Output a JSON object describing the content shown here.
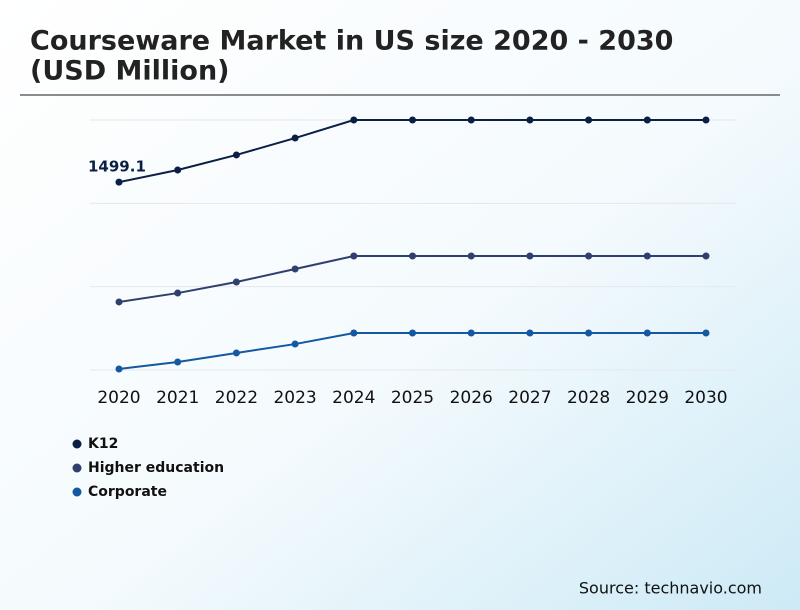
{
  "chart_data": {
    "type": "line",
    "title": "Courseware Market in US size 2020 - 2030",
    "subtitle": "(USD Million)",
    "categories": [
      "2020",
      "2021",
      "2022",
      "2023",
      "2024",
      "2025",
      "2026",
      "2027",
      "2028",
      "2029",
      "2030"
    ],
    "series": [
      {
        "name": "K12",
        "color": "#0b1f45",
        "values": [
          1499.1,
          1596,
          1716,
          1851,
          1995,
          1995,
          1995,
          1995,
          1995,
          1995,
          1995
        ]
      },
      {
        "name": "Higher education",
        "color": "#2f3f6e",
        "values": [
          543,
          614,
          702,
          806,
          910,
          910,
          910,
          910,
          910,
          910,
          910
        ]
      },
      {
        "name": "Corporate",
        "color": "#1358a0",
        "values": [
          8,
          64,
          136,
          207,
          295,
          295,
          295,
          295,
          295,
          295,
          295
        ]
      }
    ],
    "ylim": [
      0,
      1995
    ],
    "yticks": [
      0,
      665,
      1330,
      1995
    ],
    "grid": true,
    "source": "Source: technavio.com"
  }
}
